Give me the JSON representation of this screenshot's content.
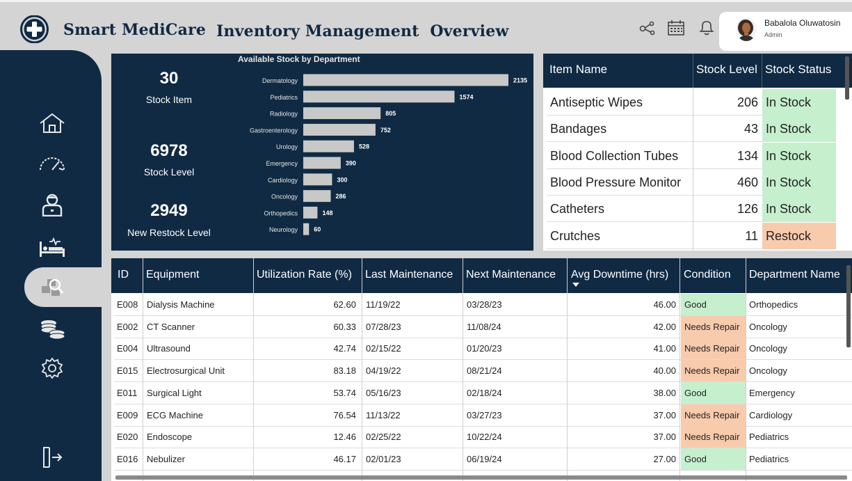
{
  "header": {
    "brand": "Smart MediCare",
    "title": "Inventory Management  Overview",
    "icons": [
      "share-icon",
      "calendar-icon",
      "bell-icon"
    ],
    "user": {
      "name": "Babalola Oluwatosin",
      "role": "Admin"
    }
  },
  "sidebar": {
    "items": [
      {
        "icon": "home-icon"
      },
      {
        "icon": "speedometer-icon"
      },
      {
        "icon": "doctor-icon"
      },
      {
        "icon": "hospital-bed-icon"
      },
      {
        "icon": "inventory-search-icon",
        "active": true
      },
      {
        "icon": "coins-icon"
      },
      {
        "icon": "settings-icon"
      },
      {
        "icon": "logout-icon"
      }
    ]
  },
  "kpis": [
    {
      "value": "30",
      "label": "Stock Item"
    },
    {
      "value": "6978",
      "label": "Stock Level"
    },
    {
      "value": "2949",
      "label": "New Restock Level"
    }
  ],
  "chart_data": {
    "type": "bar",
    "orientation": "horizontal",
    "title": "Available Stock by Department",
    "categories": [
      "Dermatology",
      "Pediatrics",
      "Radiology",
      "Gastroenterology",
      "Urology",
      "Emergency",
      "Cardiology",
      "Oncology",
      "Orthopedics",
      "Neurology"
    ],
    "values": [
      2135,
      1574,
      805,
      752,
      528,
      390,
      300,
      286,
      148,
      60
    ],
    "data_labels": [
      "2135",
      "1574",
      "805",
      "752",
      "528",
      "390",
      "300",
      "286",
      "148",
      "60"
    ],
    "bar_color": "#c8c8c8",
    "grid": false
  },
  "stock_table": {
    "columns": [
      "Item Name",
      "Stock Level",
      "Stock Status"
    ],
    "rows": [
      {
        "name": "Antiseptic Wipes",
        "level": "206",
        "status": "In Stock"
      },
      {
        "name": "Bandages",
        "level": "43",
        "status": "In Stock"
      },
      {
        "name": "Blood Collection Tubes",
        "level": "134",
        "status": "In Stock"
      },
      {
        "name": "Blood Pressure Monitor",
        "level": "460",
        "status": "In Stock"
      },
      {
        "name": "Catheters",
        "level": "126",
        "status": "In Stock"
      },
      {
        "name": "Crutches",
        "level": "11",
        "status": "Restock"
      }
    ]
  },
  "equipment_table": {
    "columns": [
      "ID",
      "Equipment",
      "Utilization Rate (%)",
      "Last Maintenance",
      "Next Maintenance",
      "Avg Downtime (hrs)",
      "Condition",
      "Department Name"
    ],
    "rows": [
      {
        "id": "E008",
        "equipment": "Dialysis Machine",
        "util": "62.60",
        "last": "11/19/22",
        "next": "03/28/23",
        "downtime": "46.00",
        "condition": "Good",
        "dept": "Orthopedics"
      },
      {
        "id": "E002",
        "equipment": "CT Scanner",
        "util": "60.33",
        "last": "07/28/23",
        "next": "11/08/24",
        "downtime": "42.00",
        "condition": "Needs Repair",
        "dept": "Oncology"
      },
      {
        "id": "E004",
        "equipment": "Ultrasound",
        "util": "42.74",
        "last": "02/15/22",
        "next": "01/20/23",
        "downtime": "41.00",
        "condition": "Needs Repair",
        "dept": "Oncology"
      },
      {
        "id": "E015",
        "equipment": "Electrosurgical Unit",
        "util": "83.18",
        "last": "04/19/22",
        "next": "08/21/24",
        "downtime": "40.00",
        "condition": "Needs Repair",
        "dept": "Oncology"
      },
      {
        "id": "E011",
        "equipment": "Surgical Light",
        "util": "53.74",
        "last": "05/16/23",
        "next": "02/18/24",
        "downtime": "38.00",
        "condition": "Good",
        "dept": "Emergency"
      },
      {
        "id": "E009",
        "equipment": "ECG Machine",
        "util": "76.54",
        "last": "11/13/22",
        "next": "03/27/23",
        "downtime": "37.00",
        "condition": "Needs Repair",
        "dept": "Cardiology"
      },
      {
        "id": "E020",
        "equipment": "Endoscope",
        "util": "12.46",
        "last": "02/25/22",
        "next": "10/22/24",
        "downtime": "37.00",
        "condition": "Needs Repair",
        "dept": "Pediatrics"
      },
      {
        "id": "E016",
        "equipment": "Nebulizer",
        "util": "46.17",
        "last": "02/01/23",
        "next": "06/19/24",
        "downtime": "27.00",
        "condition": "Good",
        "dept": "Pediatrics"
      }
    ]
  },
  "colors": {
    "navy": "#102a43",
    "good": "#c6efce",
    "repair": "#f8cbad",
    "background": "#d4d4d4"
  }
}
